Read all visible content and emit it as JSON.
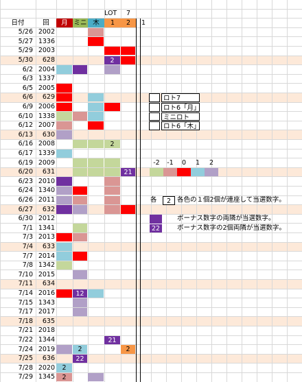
{
  "header": {
    "lot": "LOT",
    "lot_num": 7,
    "columns": [
      {
        "text": "日付"
      },
      {
        "text": "回"
      },
      {
        "text": "月",
        "color": "#c00000"
      },
      {
        "text": "ミニ",
        "color": "#9bbb59"
      },
      {
        "text": "木",
        "color": "#4bacc6"
      },
      {
        "text": 1,
        "color": "#f79646"
      },
      {
        "text": 2,
        "color": "#f79646"
      },
      {
        "text": 1
      }
    ]
  },
  "rows": [
    {
      "date": "5/26",
      "no": 2002,
      "cells": [
        null,
        null,
        {
          "color": "#da9694"
        },
        null,
        null
      ]
    },
    {
      "date": "5/27",
      "no": 1336,
      "cells": [
        null,
        null,
        {
          "color": "#ff0000"
        },
        null,
        null
      ]
    },
    {
      "date": "5/29",
      "no": 2003,
      "cells": [
        null,
        null,
        null,
        {
          "color": "#ff0000"
        },
        {
          "color": "#ff0000"
        }
      ]
    },
    {
      "date": "5/30",
      "no": 628,
      "fill": "#fde9d9",
      "cells": [
        null,
        null,
        null,
        {
          "color": "#7030a0",
          "text": 2
        },
        {
          "color": "#ff0000"
        }
      ]
    },
    {
      "date": "6/2",
      "no": 2004,
      "cells": [
        {
          "color": "#92cddc"
        },
        {
          "color": "#7030a0"
        },
        null,
        {
          "color": "#b1a0c7"
        },
        null
      ]
    },
    {
      "date": "6/3",
      "no": 1337,
      "cells": [
        null,
        null,
        null,
        null,
        null
      ]
    },
    {
      "date": "6/5",
      "no": 2005,
      "cells": [
        {
          "color": "#ff0000"
        },
        null,
        null,
        null,
        null
      ]
    },
    {
      "date": "6/6",
      "no": 629,
      "fill": "#fde9d9",
      "cells": [
        {
          "color": "#ff0000"
        },
        null,
        {
          "color": "#92cddc"
        },
        null,
        null
      ]
    },
    {
      "date": "6/9",
      "no": 2006,
      "cells": [
        {
          "color": "#ff0000"
        },
        null,
        {
          "color": "#92cddc"
        },
        {
          "color": "#ff0000"
        },
        null
      ]
    },
    {
      "date": "6/10",
      "no": 1338,
      "cells": [
        {
          "color": "#c4d79b"
        },
        {
          "color": "#da9694"
        },
        {
          "color": "#92cddc"
        },
        null,
        null
      ]
    },
    {
      "date": "6/12",
      "no": 2007,
      "cells": [
        {
          "color": "#da9694"
        },
        null,
        {
          "color": "#ff0000"
        },
        null,
        null
      ]
    },
    {
      "date": "6/13",
      "no": 630,
      "fill": "#fde9d9",
      "cells": [
        {
          "color": "#b1a0c7"
        },
        null,
        null,
        null,
        null
      ]
    },
    {
      "date": "6/16",
      "no": 2008,
      "cells": [
        null,
        {
          "color": "#c4d79b"
        },
        {
          "color": "#c4d79b"
        },
        {
          "color": "#c4d79b",
          "text": 2
        },
        null
      ]
    },
    {
      "date": "6/17",
      "no": 1339,
      "cells": [
        {
          "color": "#92cddc"
        },
        null,
        null,
        null,
        null
      ]
    },
    {
      "date": "6/19",
      "no": 2009,
      "cells": [
        null,
        {
          "color": "#c4d79b"
        },
        {
          "color": "#c4d79b"
        },
        {
          "color": "#c4d79b"
        },
        null
      ]
    },
    {
      "date": "6/20",
      "no": 631,
      "fill": "#fde9d9",
      "cells": [
        null,
        {
          "color": "#c4d79b"
        },
        {
          "color": "#c4d79b"
        },
        {
          "color": "#c4d79b"
        },
        {
          "color": "#7030a0",
          "text": 21
        }
      ]
    },
    {
      "date": "6/23",
      "no": 2010,
      "cells": [
        {
          "color": "#7030a0"
        },
        null,
        null,
        {
          "color": "#da9694"
        },
        null
      ]
    },
    {
      "date": "6/24",
      "no": 1340,
      "cells": [
        {
          "color": "#b1a0c7"
        },
        {
          "color": "#ff0000"
        },
        null,
        {
          "color": "#da9694"
        },
        null
      ]
    },
    {
      "date": "6/26",
      "no": 2011,
      "cells": [
        {
          "color": "#b1a0c7"
        },
        {
          "color": "#da9694"
        },
        null,
        {
          "color": "#da9694"
        },
        null
      ]
    },
    {
      "date": "6/27",
      "no": 632,
      "fill": "#fde9d9",
      "cells": [
        {
          "color": "#7030a0"
        },
        {
          "color": "#b1a0c7"
        },
        null,
        {
          "color": "#da9694"
        },
        {
          "color": "#ff0000"
        }
      ]
    },
    {
      "date": "6/30",
      "no": 2012,
      "cells": [
        null,
        null,
        null,
        null,
        null
      ]
    },
    {
      "date": "7/1",
      "no": 1341,
      "cells": [
        null,
        {
          "color": "#c4d79b"
        },
        null,
        null,
        null
      ]
    },
    {
      "date": "7/3",
      "no": 2013,
      "cells": [
        {
          "color": "#ff0000"
        },
        {
          "color": "#da9694"
        },
        null,
        null,
        null
      ]
    },
    {
      "date": "7/4",
      "no": 633,
      "fill": "#fde9d9",
      "cells": [
        {
          "color": "#92cddc"
        },
        null,
        null,
        null,
        null
      ]
    },
    {
      "date": "7/7",
      "no": 2014,
      "cells": [
        {
          "color": "#92cddc"
        },
        {
          "color": "#ff0000"
        },
        null,
        null,
        null
      ]
    },
    {
      "date": "7/8",
      "no": 1342,
      "cells": [
        {
          "color": "#c4d79b"
        },
        null,
        null,
        null,
        null
      ]
    },
    {
      "date": "7/10",
      "no": 2015,
      "cells": [
        null,
        {
          "color": "#b1a0c7"
        },
        null,
        null,
        null
      ]
    },
    {
      "date": "7/11",
      "no": 634,
      "fill": "#fde9d9",
      "cells": [
        null,
        null,
        null,
        null,
        null
      ]
    },
    {
      "date": "7/14",
      "no": 2016,
      "cells": [
        {
          "color": "#ff0000"
        },
        {
          "color": "#7030a0",
          "text": 12
        },
        {
          "color": "#92cddc"
        },
        null,
        null
      ]
    },
    {
      "date": "7/15",
      "no": 1343,
      "cells": [
        null,
        {
          "color": "#b1a0c7"
        },
        null,
        null,
        null
      ]
    },
    {
      "date": "7/17",
      "no": 2017,
      "cells": [
        null,
        {
          "color": "#b1a0c7"
        },
        null,
        null,
        null
      ]
    },
    {
      "date": "7/18",
      "no": 635,
      "fill": "#fde9d9",
      "cells": [
        null,
        null,
        null,
        null,
        null
      ]
    },
    {
      "date": "7/21",
      "no": 2018,
      "cells": [
        null,
        null,
        null,
        null,
        null
      ]
    },
    {
      "date": "7/22",
      "no": 1344,
      "cells": [
        null,
        null,
        null,
        {
          "color": "#7030a0",
          "text": 21
        },
        null
      ]
    },
    {
      "date": "7/24",
      "no": 2019,
      "cells": [
        {
          "color": "#b1a0c7"
        },
        {
          "color": "#92cddc",
          "text": 2
        },
        null,
        null,
        {
          "color": "#f79646",
          "text": 2
        }
      ]
    },
    {
      "date": "7/25",
      "no": 636,
      "fill": "#fde9d9",
      "cells": [
        null,
        {
          "color": "#7030a0",
          "text": 22
        },
        null,
        null,
        null
      ]
    },
    {
      "date": "7/28",
      "no": 2020,
      "cells": [
        {
          "color": "#92cddc",
          "text": 2
        },
        null,
        null,
        null,
        null
      ]
    },
    {
      "date": "7/29",
      "no": 1345,
      "cells": [
        {
          "color": "#da9694",
          "text": 2
        },
        null,
        {
          "color": "#b1a0c7"
        },
        null,
        null
      ]
    }
  ],
  "legend": {
    "games": [
      "ロト7",
      "ロト6「月」",
      "ミニロト",
      "ロト6「木」"
    ],
    "scale": [
      {
        "value": -2,
        "color": "#c4d79b"
      },
      {
        "value": -1,
        "color": "#da9694"
      },
      {
        "value": 0,
        "color": "#ff0000"
      },
      {
        "value": 1,
        "color": "#92cddc"
      },
      {
        "value": 2,
        "color": "#b1a0c7"
      }
    ],
    "notes": [
      {
        "lead": "各",
        "box": 2,
        "text": "各色の１個2個が連座して当選数字。"
      },
      {
        "color": "#7030a0",
        "text": "ボーナス数字の両隣が当選数字。"
      },
      {
        "color": "#7030a0",
        "box": 22,
        "text": "ボーナス数字の2個両隣が当選数字。"
      }
    ]
  }
}
